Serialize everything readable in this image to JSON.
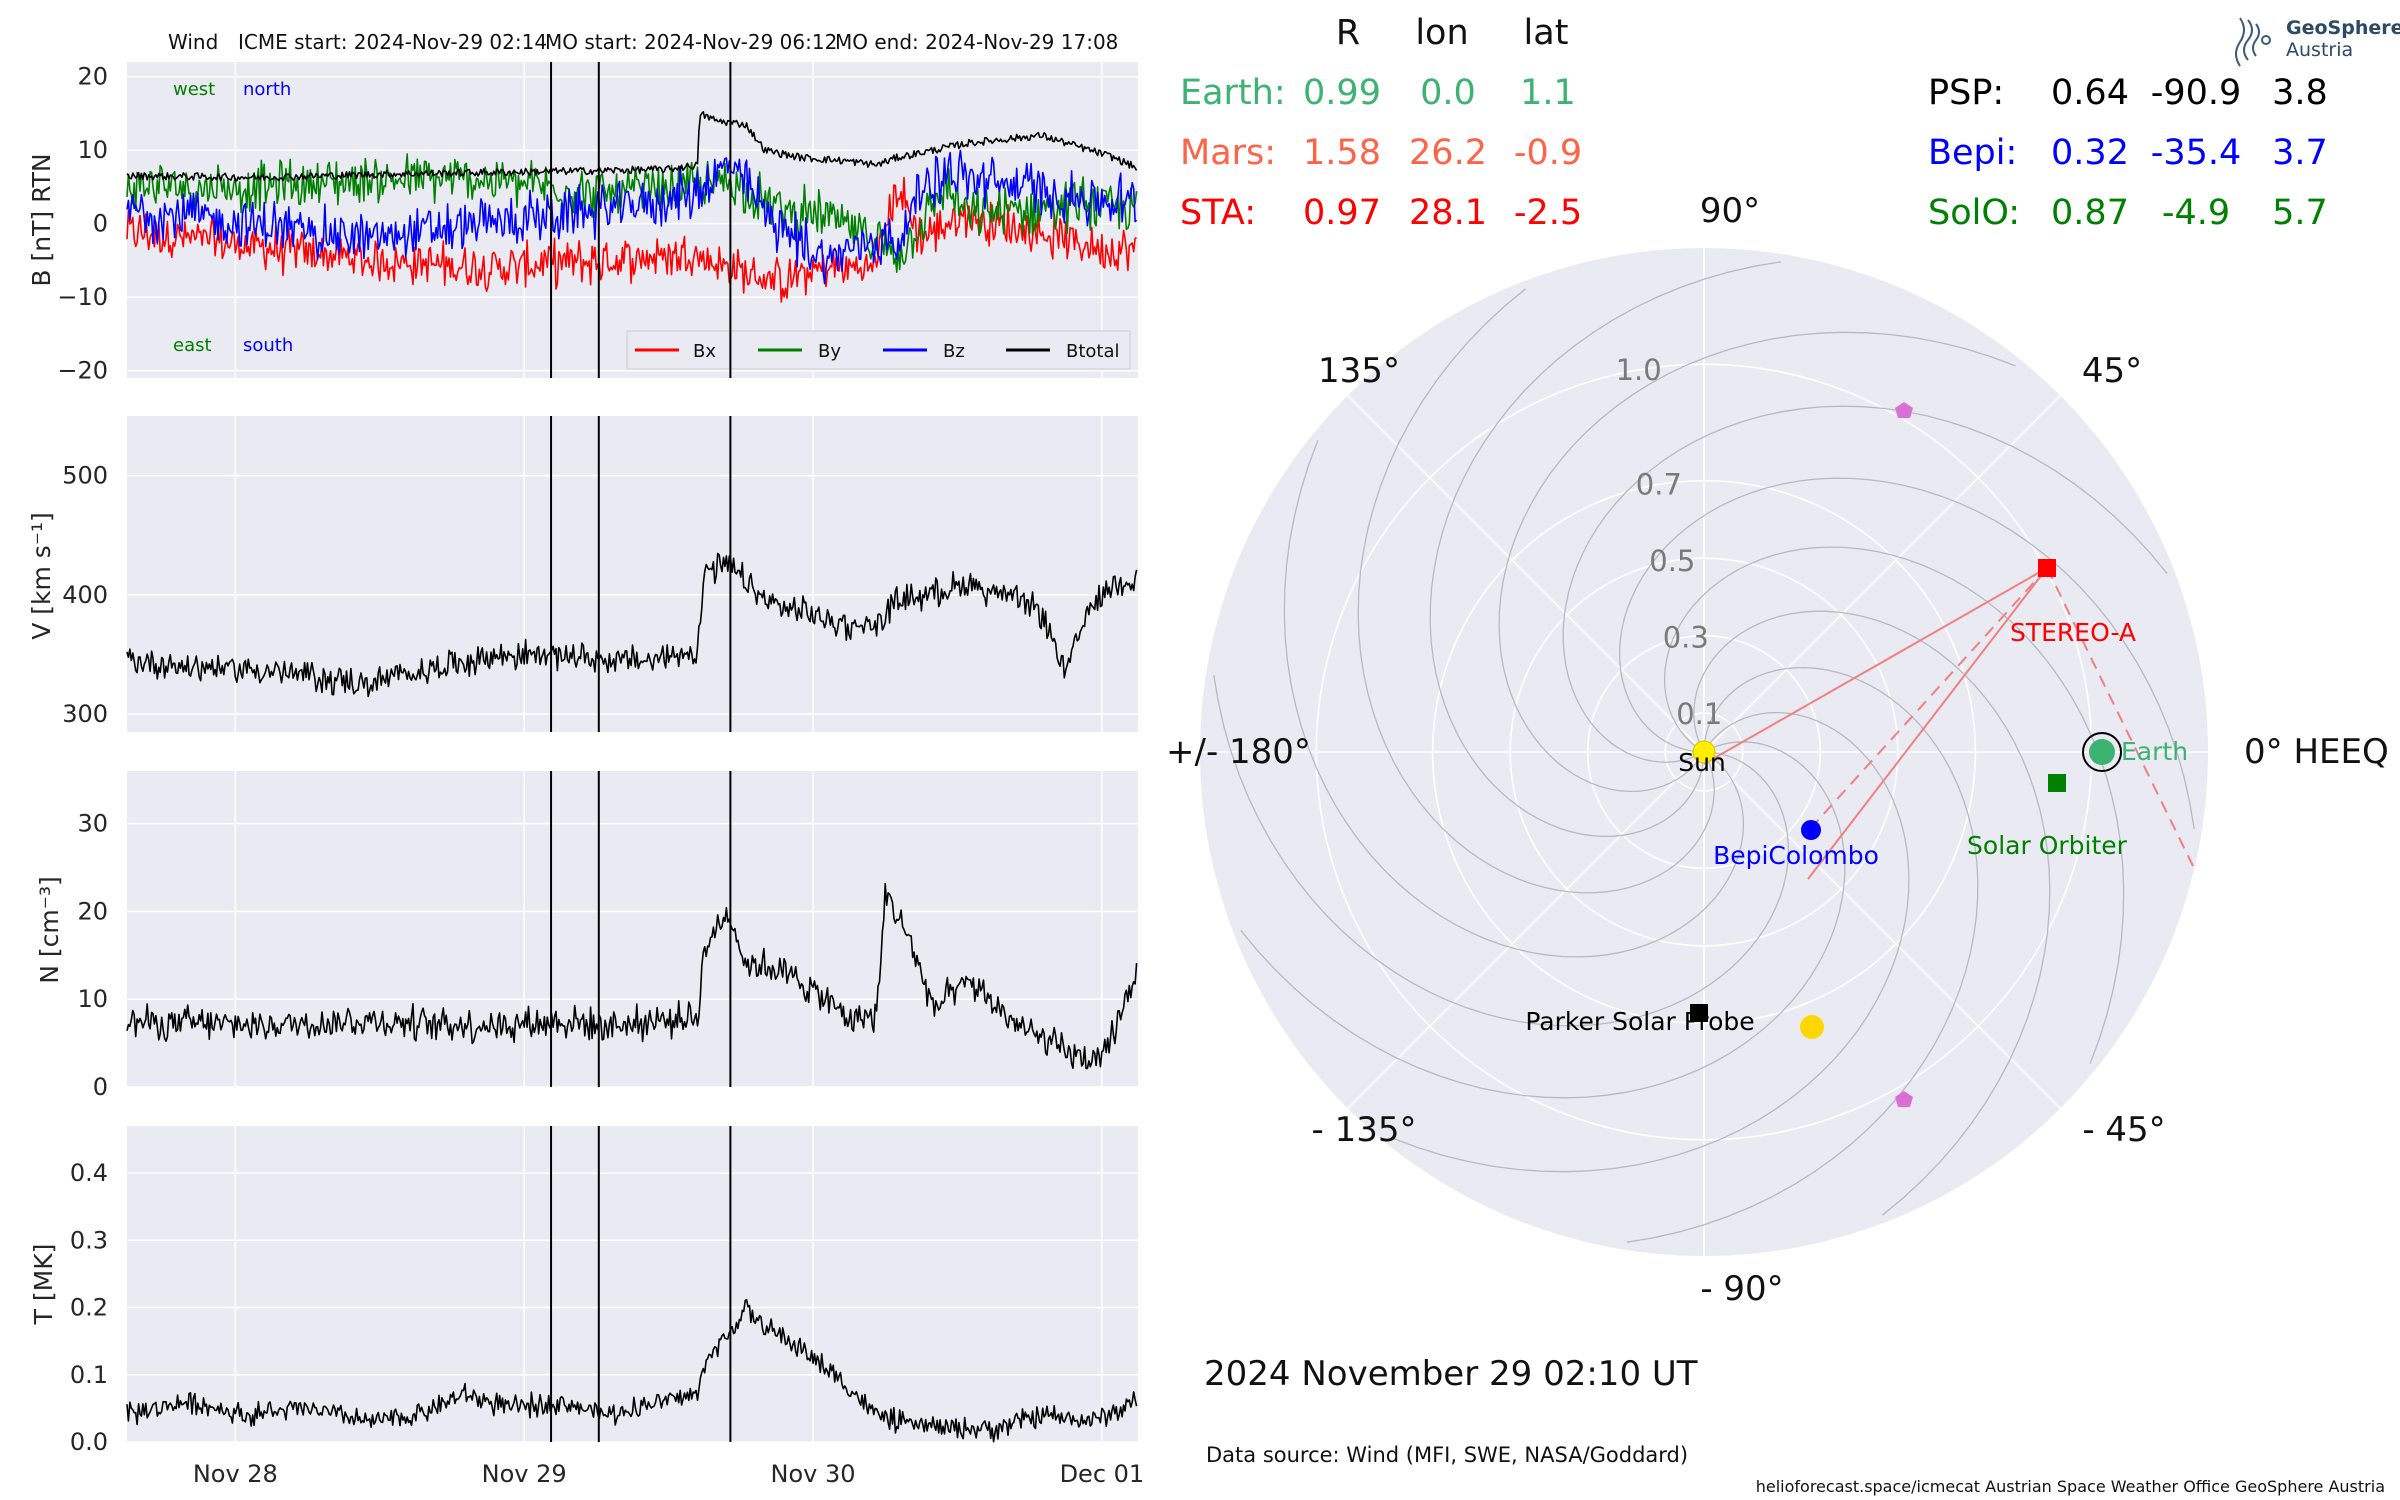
{
  "header": {
    "instrument": "Wind",
    "icme_start": "ICME start: 2024-Nov-29 02:14",
    "mo_start": "MO start: 2024-Nov-29 06:12",
    "mo_end": "MO end: 2024-Nov-29 17:08"
  },
  "panels": {
    "b": {
      "ylabel": "B [nT] RTN",
      "yticks": [
        "20",
        "10",
        "0",
        "−10",
        "−20"
      ],
      "ytick_values": [
        20,
        10,
        0,
        -10,
        -20
      ],
      "ylim": [
        -21,
        22
      ],
      "annot_west": "west",
      "annot_north": "north",
      "annot_east": "east",
      "annot_south": "south",
      "legend": [
        "Bx",
        "By",
        "Bz",
        "Btotal"
      ]
    },
    "v": {
      "ylabel": "V [km s⁻¹]",
      "yticks": [
        "500",
        "400",
        "300"
      ],
      "ytick_values": [
        500,
        400,
        300
      ],
      "ylim": [
        285,
        550
      ]
    },
    "n": {
      "ylabel": "N [cm⁻³]",
      "yticks": [
        "30",
        "20",
        "10",
        "0"
      ],
      "ytick_values": [
        30,
        20,
        10,
        0
      ],
      "ylim": [
        0,
        36
      ]
    },
    "t": {
      "ylabel": "T [MK]",
      "yticks": [
        "0.4",
        "0.3",
        "0.2",
        "0.1",
        "0.0"
      ],
      "ytick_values": [
        0.4,
        0.3,
        0.2,
        0.1,
        0.0
      ],
      "ylim": [
        0,
        0.47
      ]
    },
    "xticks": [
      "Nov 28",
      "Nov 29",
      "Nov 30",
      "Dec 01"
    ]
  },
  "chart_data": {
    "type": "line",
    "time_axis": {
      "start": "2024-11-27 15:00",
      "end": "2024-12-01 03:00",
      "ticks": [
        "2024-11-28",
        "2024-11-29",
        "2024-11-30",
        "2024-12-01"
      ]
    },
    "event_times": [
      "2024-11-29 02:14",
      "2024-11-29 06:12",
      "2024-11-29 17:08"
    ],
    "colors": {
      "Bx": "#ff0000",
      "By": "#008000",
      "Bz": "#0000ff",
      "Btotal": "#000000",
      "plasma": "#000000"
    },
    "series": [
      {
        "name": "Btotal",
        "x_hours_from_start": [
          0,
          11,
          23,
          35,
          45,
          47.4,
          47.6,
          49,
          51.4,
          53,
          56,
          60,
          62.3,
          64,
          70,
          76,
          82,
          86
        ],
        "values": [
          6.5,
          6.3,
          6.8,
          7.1,
          7.4,
          8,
          15,
          14,
          13.5,
          10,
          9,
          8.5,
          8,
          9,
          11,
          12,
          9,
          6
        ]
      },
      {
        "name": "Bx",
        "x_hours_from_start": [
          0,
          10,
          20,
          30,
          40,
          47,
          50,
          54,
          58,
          62,
          64,
          66,
          68,
          70,
          75,
          80,
          86
        ],
        "values": [
          -1,
          -3,
          -5,
          -6,
          -5,
          -4,
          -6,
          -8,
          -6,
          -6,
          5,
          -2,
          0,
          1,
          -1,
          -3,
          -4
        ]
      },
      {
        "name": "By",
        "x_hours_from_start": [
          0,
          10,
          20,
          30,
          40,
          47,
          50,
          54,
          58,
          62,
          64,
          66,
          68,
          70,
          75,
          80,
          86
        ],
        "values": [
          5,
          5,
          6,
          6,
          4,
          5,
          6,
          2,
          1,
          -2,
          -4,
          0,
          5,
          1,
          2,
          3,
          1
        ]
      },
      {
        "name": "Bz",
        "x_hours_from_start": [
          0,
          10,
          20,
          30,
          40,
          47,
          50,
          54,
          58,
          62,
          64,
          66,
          68,
          70,
          75,
          80,
          86
        ],
        "values": [
          2,
          0,
          -2,
          0,
          2,
          4,
          8,
          0,
          -5,
          -2,
          -3,
          5,
          7,
          6,
          5,
          3,
          3
        ]
      },
      {
        "name": "V",
        "x_hours_from_start": [
          0,
          5,
          10,
          15,
          20,
          24,
          28,
          32,
          36,
          40,
          44,
          47.4,
          48,
          50,
          51.4,
          53,
          56,
          60,
          62.3,
          64,
          66,
          70,
          74,
          76,
          78,
          80,
          82,
          86
        ],
        "values": [
          345,
          340,
          338,
          332,
          325,
          335,
          345,
          350,
          350,
          345,
          345,
          355,
          420,
          425,
          410,
          395,
          385,
          375,
          375,
          395,
          400,
          410,
          395,
          385,
          335,
          390,
          410,
          420
        ]
      },
      {
        "name": "N",
        "x_hours_from_start": [
          0,
          10,
          20,
          30,
          36,
          40,
          44,
          47.4,
          48,
          50,
          51.4,
          53,
          56,
          60,
          62.3,
          63,
          65,
          67,
          70,
          74,
          78,
          81,
          84,
          86
        ],
        "values": [
          7.5,
          7,
          7.5,
          7,
          7.5,
          7,
          7.5,
          8,
          16,
          20,
          14,
          14,
          12,
          8,
          8,
          22,
          17,
          9,
          12,
          7,
          4,
          2.5,
          14,
          12
        ]
      },
      {
        "name": "T",
        "x_hours_from_start": [
          0,
          5,
          10,
          15,
          20,
          24,
          28,
          32,
          36,
          40,
          44,
          47.4,
          48,
          50,
          51.4,
          53,
          56,
          60,
          62.3,
          64,
          68,
          72,
          76,
          80,
          84,
          86
        ],
        "values": [
          0.04,
          0.06,
          0.04,
          0.05,
          0.03,
          0.04,
          0.07,
          0.05,
          0.06,
          0.04,
          0.06,
          0.07,
          0.12,
          0.16,
          0.2,
          0.17,
          0.14,
          0.08,
          0.04,
          0.03,
          0.02,
          0.02,
          0.04,
          0.03,
          0.06,
          0.08
        ]
      }
    ]
  },
  "polar": {
    "angle_labels": {
      "a90": "90°",
      "a45": "45°",
      "a0": "0° HEEQ",
      "am45": "- 45°",
      "am90": "- 90°",
      "am135": "- 135°",
      "a180": "+/- 180°",
      "a135": "135°"
    },
    "r_labels": [
      "0.1",
      "0.3",
      "0.5",
      "0.7",
      "1.0"
    ],
    "r_values": [
      0.1,
      0.3,
      0.5,
      0.7,
      1.0
    ],
    "r_max": 1.3,
    "craft": [
      {
        "name": "Sun",
        "r": 0,
        "lon": 0,
        "color": "#ffee00",
        "label_color": "#000000"
      },
      {
        "name": "Earth",
        "r": 0.99,
        "lon": 0.0,
        "color": "#3cb371",
        "label_color": "#3cb371"
      },
      {
        "name": "STEREO-A",
        "r": 0.97,
        "lon": 28.1,
        "color": "#ff0000",
        "label_color": "#ff0000"
      },
      {
        "name": "BepiColombo",
        "r": 0.32,
        "lon": -35.4,
        "color": "#0000ff",
        "label_color": "#0000ff"
      },
      {
        "name": "Solar Orbiter",
        "r": 0.87,
        "lon": -4.9,
        "color": "#008000",
        "label_color": "#008000"
      },
      {
        "name": "Parker Solar Probe",
        "r": 0.64,
        "lon": -90.9,
        "color": "#000000",
        "label_color": "#000000"
      }
    ]
  },
  "positions_table": {
    "headers": [
      "R",
      "lon",
      "lat"
    ],
    "rows_left": [
      {
        "name": "Earth:",
        "r": "0.99",
        "lon": "0.0",
        "lat": "1.1",
        "color": "#3cb371"
      },
      {
        "name": "Mars:",
        "r": "1.58",
        "lon": "26.2",
        "lat": "-0.9",
        "color": "#ff6347"
      },
      {
        "name": "STA:",
        "r": "0.97",
        "lon": "28.1",
        "lat": "-2.5",
        "color": "#ff0000"
      }
    ],
    "rows_right": [
      {
        "name": "PSP:",
        "r": "0.64",
        "lon": "-90.9",
        "lat": "3.8",
        "color": "#000000"
      },
      {
        "name": "Bepi:",
        "r": "0.32",
        "lon": "-35.4",
        "lat": "3.7",
        "color": "#0000ff"
      },
      {
        "name": "SolO:",
        "r": "0.87",
        "lon": "-4.9",
        "lat": "5.7",
        "color": "#008000"
      }
    ]
  },
  "logo": {
    "line1": "GeoSphere",
    "line2": "Austria"
  },
  "footer": {
    "date": "2024 November 29  02:10 UT",
    "source": "Data source: Wind (MFI, SWE, NASA/Goddard)",
    "credits": "helioforecast.space/icmecat   Austrian Space Weather Office   GeoSphere Austria"
  }
}
